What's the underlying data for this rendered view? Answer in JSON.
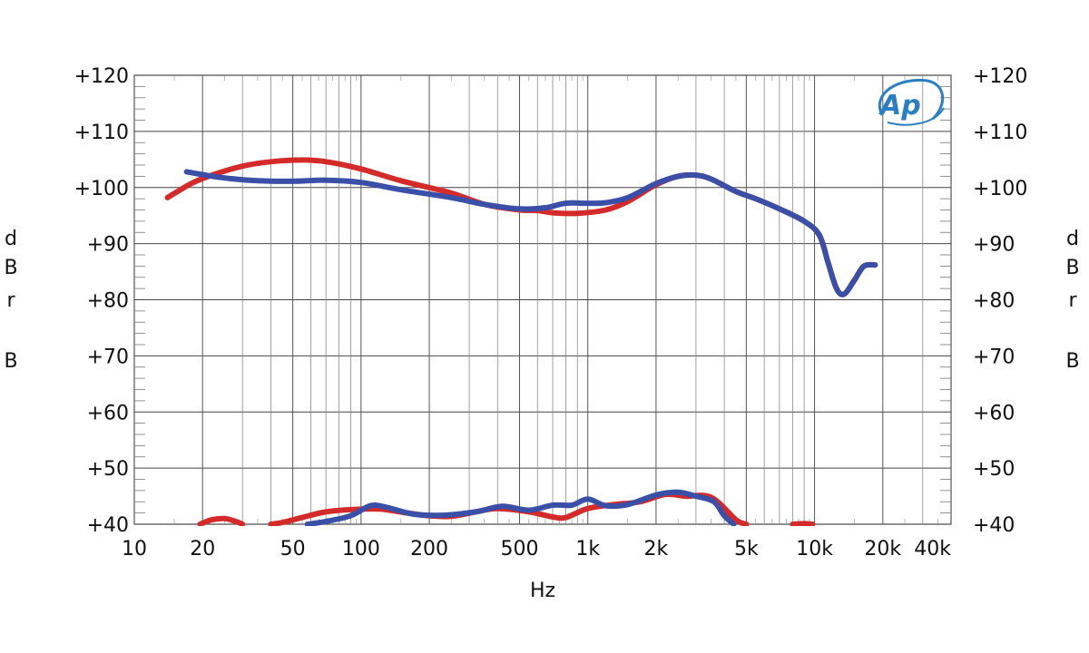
{
  "chart_data": {
    "type": "line",
    "title": "",
    "xlabel": "Hz",
    "ylabel": "dBrB",
    "x_scale": "log",
    "xlim": [
      10,
      40000
    ],
    "ylim": [
      40,
      120
    ],
    "grid": true,
    "x_ticks": [
      {
        "value": 10,
        "label": "10"
      },
      {
        "value": 20,
        "label": "20"
      },
      {
        "value": 50,
        "label": "50"
      },
      {
        "value": 100,
        "label": "100"
      },
      {
        "value": 200,
        "label": "200"
      },
      {
        "value": 500,
        "label": "500"
      },
      {
        "value": 1000,
        "label": "1k"
      },
      {
        "value": 2000,
        "label": "2k"
      },
      {
        "value": 5000,
        "label": "5k"
      },
      {
        "value": 10000,
        "label": "10k"
      },
      {
        "value": 20000,
        "label": "20k"
      },
      {
        "value": 40000,
        "label": "40k"
      }
    ],
    "y_ticks": [
      {
        "value": 120,
        "label": "+120"
      },
      {
        "value": 110,
        "label": "+110"
      },
      {
        "value": 100,
        "label": "+100"
      },
      {
        "value": 90,
        "label": "+90"
      },
      {
        "value": 80,
        "label": "+80"
      },
      {
        "value": 70,
        "label": "+70"
      },
      {
        "value": 60,
        "label": "+60"
      },
      {
        "value": 50,
        "label": "+50"
      },
      {
        "value": 40,
        "label": "+40"
      }
    ],
    "series": [
      {
        "color": "#d42a2a",
        "segments": [
          [
            [
              14,
              98.2
            ],
            [
              18,
              100.8
            ],
            [
              22,
              102.2
            ],
            [
              30,
              103.8
            ],
            [
              40,
              104.6
            ],
            [
              55,
              104.9
            ],
            [
              70,
              104.6
            ],
            [
              100,
              103.3
            ],
            [
              150,
              101.2
            ],
            [
              250,
              99.0
            ],
            [
              350,
              97.0
            ],
            [
              500,
              96.0
            ],
            [
              600,
              95.9
            ],
            [
              700,
              95.5
            ],
            [
              900,
              95.4
            ],
            [
              1200,
              96.0
            ],
            [
              1500,
              97.5
            ],
            [
              2000,
              100.5
            ],
            [
              2500,
              102.0
            ],
            [
              3000,
              102.2
            ],
            [
              3500,
              101.5
            ],
            [
              4500,
              99.3
            ],
            [
              5500,
              98.0
            ],
            [
              7000,
              96.2
            ],
            [
              9000,
              94.0
            ],
            [
              10500,
              91.5
            ],
            [
              11500,
              86.5
            ],
            [
              12500,
              82.0
            ],
            [
              13500,
              81.0
            ],
            [
              15000,
              83.5
            ],
            [
              16500,
              86.0
            ],
            [
              18500,
              86.2
            ]
          ],
          [
            [
              19.5,
              40
            ],
            [
              22,
              40.8
            ],
            [
              25,
              41.0
            ],
            [
              28,
              40.5
            ],
            [
              30,
              40
            ]
          ],
          [
            [
              40,
              40
            ],
            [
              45,
              40.3
            ],
            [
              55,
              41.2
            ],
            [
              70,
              42.2
            ],
            [
              90,
              42.6
            ],
            [
              120,
              42.7
            ],
            [
              160,
              42.0
            ],
            [
              200,
              41.5
            ],
            [
              250,
              41.4
            ],
            [
              320,
              42.2
            ],
            [
              400,
              42.8
            ],
            [
              550,
              42.2
            ],
            [
              700,
              41.3
            ],
            [
              800,
              41.2
            ],
            [
              1000,
              42.8
            ],
            [
              1300,
              43.5
            ],
            [
              1700,
              44.0
            ],
            [
              2200,
              45.3
            ],
            [
              2700,
              45.0
            ],
            [
              3500,
              44.8
            ],
            [
              4500,
              40.8
            ],
            [
              5000,
              40
            ]
          ],
          [
            [
              8000,
              40
            ],
            [
              9000,
              40.1
            ],
            [
              9800,
              40
            ]
          ]
        ]
      },
      {
        "color": "#3a4fa8",
        "segments": [
          [
            [
              17,
              102.8
            ],
            [
              20,
              102.3
            ],
            [
              25,
              101.7
            ],
            [
              35,
              101.2
            ],
            [
              50,
              101.1
            ],
            [
              70,
              101.3
            ],
            [
              100,
              100.9
            ],
            [
              150,
              99.6
            ],
            [
              250,
              98.2
            ],
            [
              350,
              97.0
            ],
            [
              500,
              96.2
            ],
            [
              650,
              96.4
            ],
            [
              800,
              97.2
            ],
            [
              1000,
              97.2
            ],
            [
              1200,
              97.3
            ],
            [
              1500,
              98.2
            ],
            [
              2000,
              100.7
            ],
            [
              2500,
              102.0
            ],
            [
              3000,
              102.2
            ],
            [
              3500,
              101.5
            ],
            [
              4500,
              99.3
            ],
            [
              5500,
              98.0
            ],
            [
              7000,
              96.2
            ],
            [
              9000,
              94.0
            ],
            [
              10500,
              91.5
            ],
            [
              11500,
              86.5
            ],
            [
              12500,
              82.0
            ],
            [
              13500,
              81.0
            ],
            [
              15000,
              83.5
            ],
            [
              16500,
              86.0
            ],
            [
              18500,
              86.2
            ]
          ],
          [
            [
              58,
              40
            ],
            [
              70,
              40.5
            ],
            [
              90,
              41.5
            ],
            [
              110,
              43.3
            ],
            [
              130,
              43.0
            ],
            [
              170,
              41.8
            ],
            [
              230,
              41.6
            ],
            [
              320,
              42.2
            ],
            [
              420,
              43.2
            ],
            [
              550,
              42.5
            ],
            [
              700,
              43.4
            ],
            [
              850,
              43.4
            ],
            [
              1000,
              44.5
            ],
            [
              1200,
              43.3
            ],
            [
              1500,
              43.5
            ],
            [
              2000,
              45.2
            ],
            [
              2500,
              45.7
            ],
            [
              3000,
              45.0
            ],
            [
              3600,
              44.0
            ],
            [
              4000,
              41.5
            ],
            [
              4400,
              40
            ]
          ]
        ]
      }
    ]
  },
  "ylabel_letters": [
    "d",
    "B",
    "r",
    "B"
  ],
  "logo": {
    "text": "Ap",
    "color": "#2a7fc4"
  }
}
